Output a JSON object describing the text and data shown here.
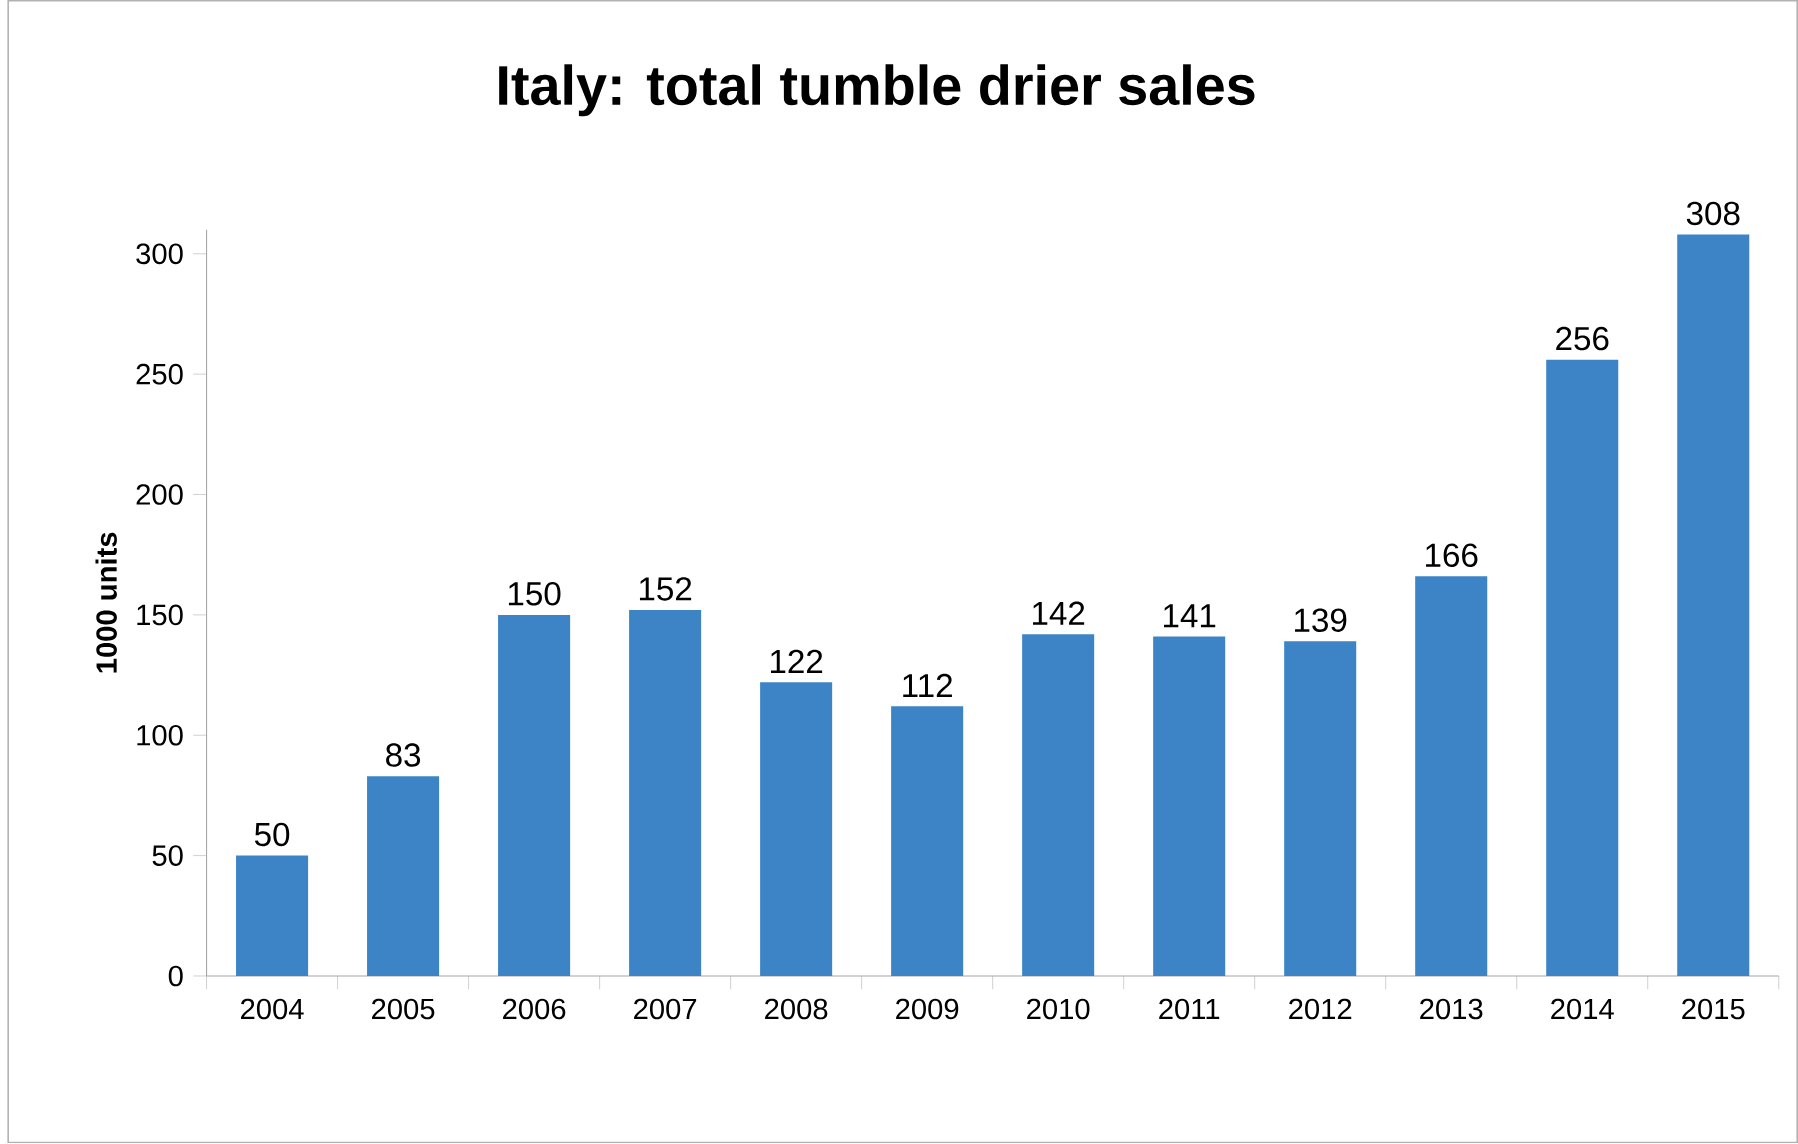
{
  "chart_data": {
    "type": "bar",
    "title": "Italy: total tumble drier sales",
    "ylabel": "1000 units",
    "categories": [
      "2004",
      "2005",
      "2006",
      "2007",
      "2008",
      "2009",
      "2010",
      "2011",
      "2012",
      "2013",
      "2014",
      "2015"
    ],
    "values": [
      50,
      83,
      150,
      152,
      122,
      112,
      142,
      141,
      139,
      166,
      256,
      308
    ],
    "color": "#3d84c6",
    "ylim": [
      0,
      310
    ],
    "yticks": [
      0,
      50,
      100,
      150,
      200,
      250,
      300
    ],
    "data_labels": true
  }
}
